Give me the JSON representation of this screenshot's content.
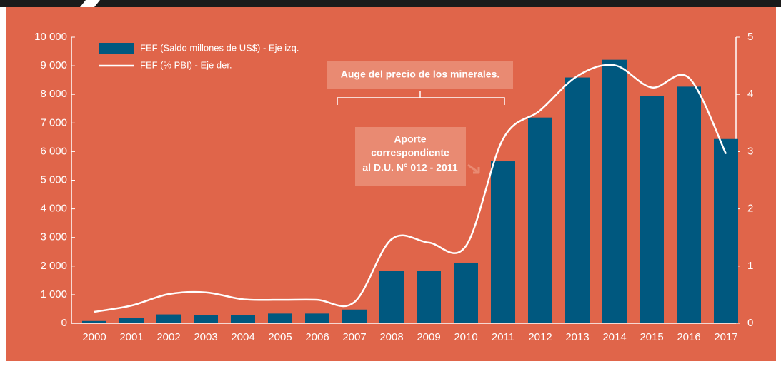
{
  "chart_data": {
    "type": "bar",
    "categories": [
      "2000",
      "2001",
      "2002",
      "2003",
      "2004",
      "2005",
      "2006",
      "2007",
      "2008",
      "2009",
      "2010",
      "2011",
      "2012",
      "2013",
      "2014",
      "2015",
      "2016",
      "2017"
    ],
    "series": [
      {
        "name": "FEF (Saldo millones de US$) - Eje izq.",
        "type": "bar",
        "color": "#00587f",
        "values": [
          80,
          180,
          310,
          290,
          290,
          340,
          340,
          480,
          1830,
          1830,
          2120,
          5660,
          7190,
          8590,
          9210,
          7940,
          8270,
          6440
        ]
      },
      {
        "name": "FEF (% PBI) - Eje der.",
        "type": "line",
        "axis": "y2",
        "color": "#ffffff",
        "values": [
          0.2,
          0.31,
          0.51,
          0.54,
          0.42,
          0.41,
          0.41,
          0.37,
          1.47,
          1.41,
          1.35,
          3.22,
          3.72,
          4.32,
          4.51,
          4.12,
          4.29,
          2.96
        ]
      }
    ],
    "ylim": [
      0,
      10000
    ],
    "yticks": [
      0,
      {
        "value": 1000,
        "label": "1 000"
      },
      {
        "value": 2000,
        "label": "2 000"
      },
      {
        "value": 3000,
        "label": "3 000"
      },
      {
        "value": 4000,
        "label": "4 000"
      },
      {
        "value": 5000,
        "label": "5 000"
      },
      {
        "value": 6000,
        "label": "6 000"
      },
      {
        "value": 7000,
        "label": "7 000"
      },
      {
        "value": 8000,
        "label": "8 000"
      },
      {
        "value": 9000,
        "label": "9 000"
      },
      {
        "value": 10000,
        "label": "10 000"
      }
    ],
    "y2lim": [
      0,
      5
    ],
    "y2ticks": [
      0,
      1,
      2,
      3,
      4,
      5
    ],
    "legend": "top-left",
    "annotations": [
      {
        "text": "Auge del precio de los minerales."
      },
      {
        "lines": [
          "Aporte",
          "correspondiente",
          "al D.U. N° 012 - 2011"
        ]
      }
    ]
  }
}
